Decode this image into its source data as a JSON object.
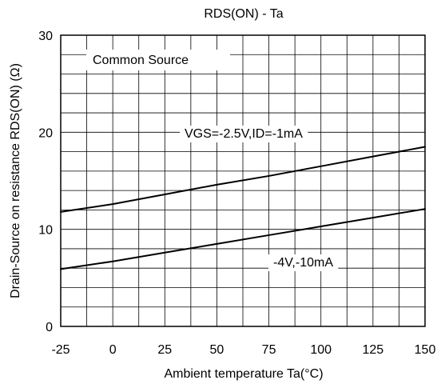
{
  "chart_data": {
    "type": "line",
    "title": "RDS(ON) - Ta",
    "xlabel": "Ambient temperature Ta(°C)",
    "ylabel": "Drain-Source on resistance RDS(ON) (Ω)",
    "xlim": [
      -25,
      150
    ],
    "ylim": [
      0,
      30
    ],
    "x_ticks": [
      -25,
      0,
      25,
      50,
      75,
      100,
      125,
      150
    ],
    "y_ticks": [
      0,
      10,
      20,
      30
    ],
    "x_tick_labels": [
      "-25",
      "0",
      "25",
      "50",
      "75",
      "100",
      "125",
      "150"
    ],
    "y_tick_labels": [
      "0",
      "10",
      "20",
      "30"
    ],
    "grid": true,
    "grid_minor_x_step": 12.5,
    "grid_minor_y_step": 2,
    "annotations": [
      "Common Source"
    ],
    "series": [
      {
        "label": "VGS=-2.5V,ID=-1mA",
        "color": "#000000",
        "x": [
          -25,
          0,
          25,
          50,
          75,
          100,
          125,
          150
        ],
        "y": [
          11.8,
          12.6,
          13.6,
          14.6,
          15.5,
          16.5,
          17.5,
          18.5
        ]
      },
      {
        "label": "-4V,-10mA",
        "color": "#000000",
        "x": [
          -25,
          0,
          25,
          50,
          75,
          100,
          125,
          150
        ],
        "y": [
          5.9,
          6.7,
          7.6,
          8.5,
          9.4,
          10.3,
          11.2,
          12.1
        ]
      }
    ]
  }
}
